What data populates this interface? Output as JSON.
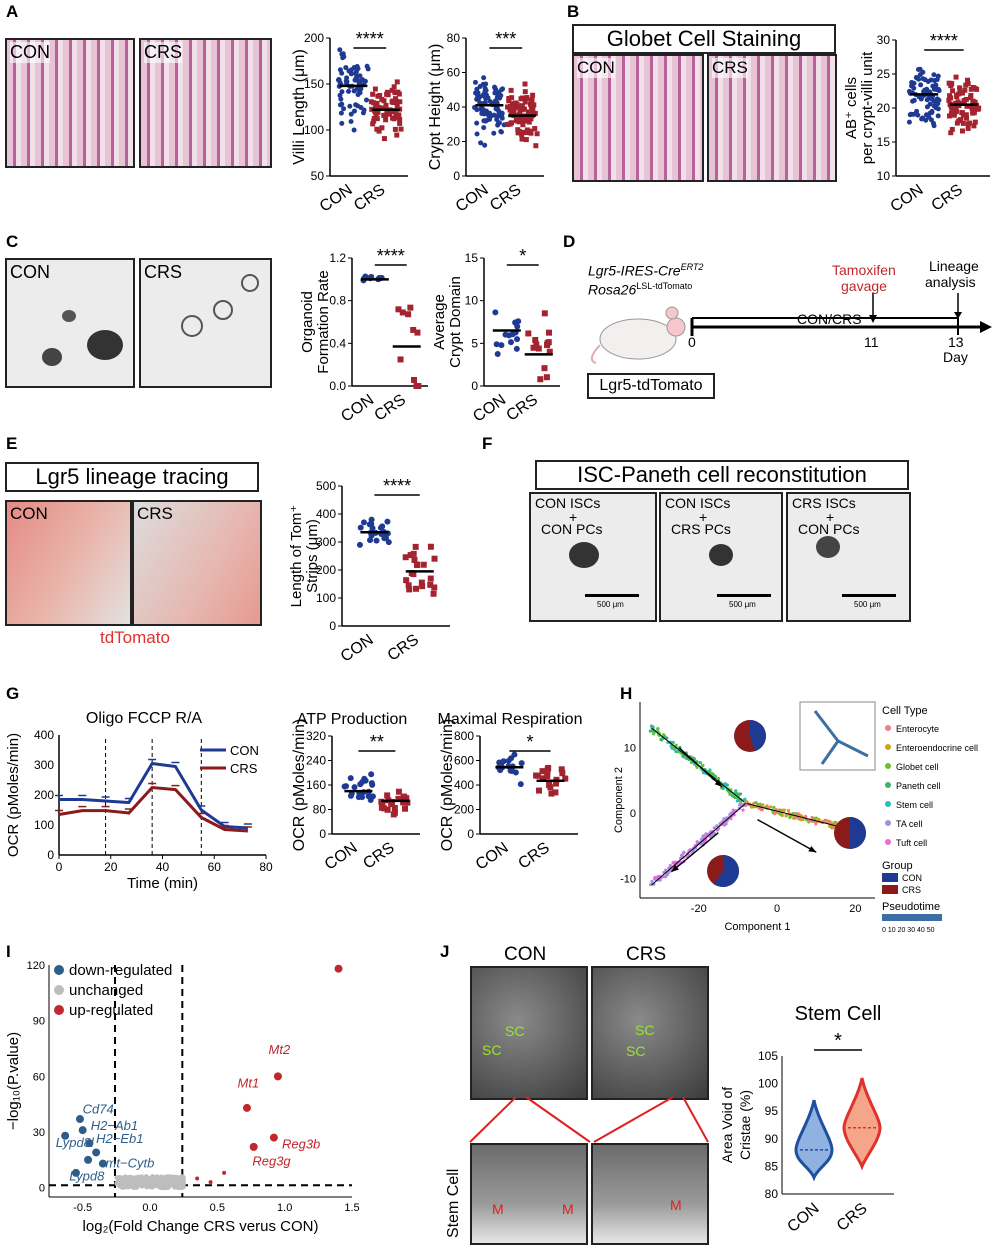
{
  "panels": {
    "A": {
      "letter": "A",
      "img_labels": [
        "CON",
        "CRS"
      ],
      "villi": {
        "ylabel": "Villi Length (μm)",
        "yticks": [
          "50",
          "100",
          "150",
          "200"
        ],
        "ylim": [
          50,
          200
        ],
        "sig": "****",
        "categories": [
          "CON",
          "CRS"
        ],
        "means": [
          148,
          122
        ]
      },
      "crypt": {
        "ylabel": "Crypt Height (μm)",
        "yticks": [
          "0",
          "20",
          "40",
          "60",
          "80"
        ],
        "ylim": [
          0,
          80
        ],
        "sig": "***",
        "categories": [
          "CON",
          "CRS"
        ],
        "means": [
          41,
          35
        ]
      }
    },
    "B": {
      "letter": "B",
      "title": "Globet Cell Staining",
      "img_labels": [
        "CON",
        "CRS"
      ],
      "chart": {
        "ylabel": "AB⁺ cells",
        "ylabel2": "per crypt-villi unit",
        "yticks": [
          "10",
          "15",
          "20",
          "25",
          "30"
        ],
        "ylim": [
          10,
          30
        ],
        "sig": "****",
        "categories": [
          "CON",
          "CRS"
        ],
        "means": [
          22,
          20.5
        ]
      }
    },
    "C": {
      "letter": "C",
      "img_labels": [
        "CON",
        "CRS"
      ],
      "org": {
        "ylabel": "Organoid",
        "ylabel2": "Formation Rate",
        "yticks": [
          "0.0",
          "0.4",
          "0.8",
          "1.2"
        ],
        "ylim": [
          0,
          1.2
        ],
        "sig": "****",
        "categories": [
          "CON",
          "CRS"
        ],
        "means": [
          1.0,
          0.37
        ]
      },
      "domain": {
        "ylabel": "Average",
        "ylabel2": "Crypt Domain",
        "yticks": [
          "0",
          "5",
          "10",
          "15"
        ],
        "ylim": [
          0,
          15
        ],
        "sig": "*",
        "categories": [
          "CON",
          "CRS"
        ],
        "means": [
          6.5,
          3.7
        ]
      }
    },
    "D": {
      "letter": "D",
      "gene1": "Lgr5-IRES-Cre",
      "gene1_sup": "ERT2",
      "gene2": "Rosa26",
      "gene2_sup": "LSL-tdTomato",
      "mouse_label": "Lgr5-tdTomato",
      "tamoxifen": "Tamoxifen",
      "gavage": "gavage",
      "lineage": "Lineage",
      "analysis": "analysis",
      "timeline_label": "CON/CRS",
      "days": [
        "0",
        "11",
        "13"
      ],
      "day_unit": "Day"
    },
    "E": {
      "letter": "E",
      "title": "Lgr5 lineage tracing",
      "img_labels": [
        "CON",
        "CRS"
      ],
      "caption": "tdTomato",
      "chart": {
        "ylabel": "Length of Tom⁺",
        "ylabel2": "Strips (μm)",
        "yticks": [
          "0",
          "100",
          "200",
          "300",
          "400",
          "500"
        ],
        "ylim": [
          0,
          500
        ],
        "sig": "****",
        "categories": [
          "CON",
          "CRS"
        ],
        "means": [
          335,
          195
        ]
      }
    },
    "F": {
      "letter": "F",
      "title": "ISC-Paneth cell reconstitution",
      "images": [
        {
          "line1": "CON ISCs",
          "plus": "+",
          "line2": "CON PCs"
        },
        {
          "line1": "CON ISCs",
          "plus": "+",
          "line2": "CRS PCs"
        },
        {
          "line1": "CRS ISCs",
          "plus": "+",
          "line2": "CON PCs"
        }
      ],
      "scale": "500 μm"
    },
    "G": {
      "letter": "G",
      "ocr_title": "Oligo FCCP R/A",
      "ylabel": "OCR (pMoles/min)",
      "xlabel": "Time (min)",
      "yticks": [
        "0",
        "100",
        "200",
        "300",
        "400"
      ],
      "xticks": [
        "0",
        "20",
        "40",
        "60",
        "80"
      ],
      "legend": [
        "CON",
        "CRS"
      ],
      "time": [
        0,
        9,
        18,
        27,
        36,
        45,
        55,
        64,
        73
      ],
      "con": [
        185,
        185,
        180,
        175,
        305,
        295,
        150,
        95,
        90
      ],
      "crs": [
        135,
        148,
        148,
        140,
        225,
        218,
        125,
        85,
        80
      ],
      "atp": {
        "title": "ATP Production",
        "ylabel": "OCR (pMoles/min)",
        "yticks": [
          "0",
          "80",
          "160",
          "240",
          "320"
        ],
        "ylim": [
          0,
          320
        ],
        "sig": "**",
        "categories": [
          "CON",
          "CRS"
        ],
        "means": [
          140,
          108
        ]
      },
      "max": {
        "title": "Maximal Respiration",
        "ylabel": "OCR (pMoles/min)",
        "yticks": [
          "0",
          "200",
          "400",
          "600",
          "800"
        ],
        "ylim": [
          0,
          800
        ],
        "sig": "*",
        "categories": [
          "CON",
          "CRS"
        ],
        "means": [
          545,
          435
        ]
      }
    },
    "H": {
      "letter": "H",
      "xlabel": "Component 1",
      "ylabel": "Component 2",
      "xticks": [
        "-20",
        "0",
        "20"
      ],
      "yticks": [
        "-10",
        "0",
        "10"
      ],
      "legend_title": "Cell Type",
      "cell_types": [
        {
          "name": "Enterocyte",
          "color": "#f08080"
        },
        {
          "name": "Enteroendocrine cell",
          "color": "#d4a017"
        },
        {
          "name": "Globet cell",
          "color": "#6cbf2e"
        },
        {
          "name": "Paneth cell",
          "color": "#3cb371"
        },
        {
          "name": "Stem cell",
          "color": "#20c0c0"
        },
        {
          "name": "TA cell",
          "color": "#a58de0"
        },
        {
          "name": "Tuft cell",
          "color": "#ee66dd"
        }
      ],
      "group_title": "Group",
      "groups": [
        {
          "name": "CON",
          "color": "#1f3a93"
        },
        {
          "name": "CRS",
          "color": "#8b1a1a"
        }
      ],
      "pseudo_title": "Pseudotime",
      "pseudo_ticks": "0 10 20 30 40 50"
    },
    "I": {
      "letter": "I",
      "xlabel": "log₂(Fold Change CRS verus CON)",
      "ylabel": "−log₁₀(P.value)",
      "xticks": [
        "-0.5",
        "0.0",
        "0.5",
        "1.0",
        "1.5"
      ],
      "yticks": [
        "0",
        "30",
        "60",
        "90",
        "120"
      ],
      "legend": [
        {
          "name": "down-regulated",
          "color": "#2f5d8a"
        },
        {
          "name": "unchanged",
          "color": "#bdbdbd"
        },
        {
          "name": "up-regulated",
          "color": "#c0282d"
        }
      ],
      "down_genes": [
        "Cd74",
        "H2−Ab1",
        "H2−Eb1",
        "Lypd8l",
        "mt−Cytb",
        "Lypd8"
      ],
      "up_genes": [
        "Mt2",
        "Mt1",
        "Reg3b",
        "Reg3g"
      ]
    },
    "J": {
      "letter": "J",
      "col_labels": [
        "CON",
        "CRS"
      ],
      "row_label": "Stem Cell",
      "sc": "SC",
      "m": "M",
      "chart": {
        "title": "Stem Cell",
        "ylabel": "Area Void of",
        "ylabel2": "Cristae (%)",
        "yticks": [
          "80",
          "85",
          "90",
          "95",
          "100",
          "105"
        ],
        "ylim": [
          80,
          105
        ],
        "sig": "*",
        "categories": [
          "CON",
          "CRS"
        ],
        "medians": [
          88,
          92
        ]
      }
    }
  }
}
